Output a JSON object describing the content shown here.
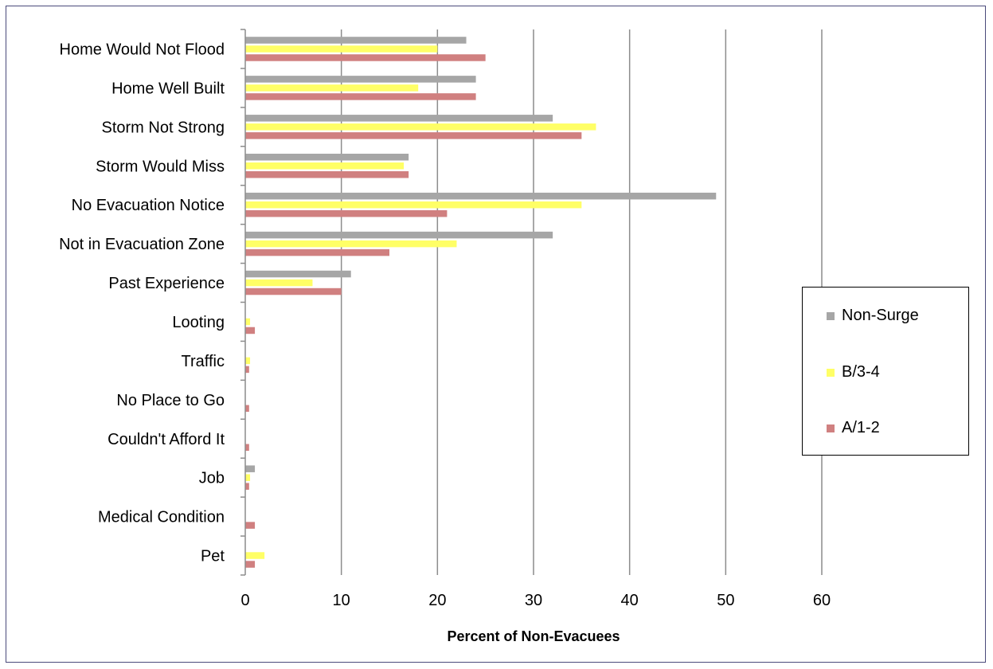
{
  "chart_data": {
    "type": "bar",
    "orientation": "horizontal",
    "title": "",
    "xlabel": "Percent of Non-Evacuees",
    "ylabel": "",
    "xlim": [
      0,
      60
    ],
    "x_ticks": [
      0,
      10,
      20,
      30,
      40,
      50,
      60
    ],
    "grid": "vertical",
    "legend_position": "right",
    "categories": [
      "Home Would Not Flood",
      "Home Well Built",
      "Storm Not Strong",
      "Storm Would Miss",
      "No Evacuation Notice",
      "Not in Evacuation Zone",
      "Past Experience",
      "Looting",
      "Traffic",
      "No Place to Go",
      "Couldn't Afford It",
      "Job",
      "Medical Condition",
      "Pet"
    ],
    "series": [
      {
        "name": "Non-Surge",
        "color": "#a6a6a6",
        "values": [
          23,
          24,
          32,
          17,
          49,
          32,
          11,
          0,
          0,
          0,
          0,
          1,
          0,
          0
        ]
      },
      {
        "name": "B/3-4",
        "color": "#ffff66",
        "values": [
          20,
          18,
          36.5,
          16.5,
          35,
          22,
          7,
          0.5,
          0.5,
          0,
          0,
          0.5,
          0,
          2
        ]
      },
      {
        "name": "A/1-2",
        "color": "#d08080",
        "values": [
          25,
          24,
          35,
          17,
          21,
          15,
          10,
          1,
          0.4,
          0.4,
          0.4,
          0.4,
          1,
          1
        ]
      }
    ]
  }
}
